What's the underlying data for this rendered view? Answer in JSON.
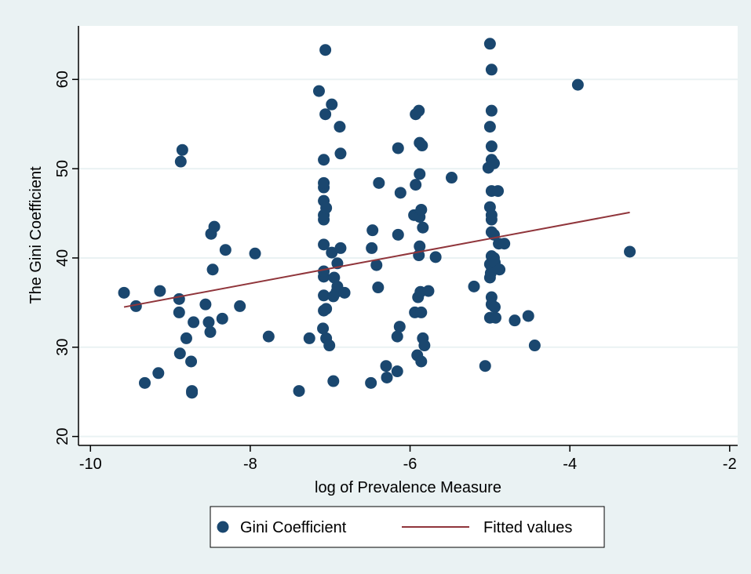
{
  "chart_data": {
    "type": "scatter",
    "xlabel": "log of Prevalence Measure",
    "ylabel": "The Gini Coefficient",
    "xlim": [
      -10.15,
      -1.9
    ],
    "ylim": [
      19,
      66
    ],
    "x_ticks": [
      -10,
      -8,
      -6,
      -4,
      -2
    ],
    "y_ticks": [
      20,
      30,
      40,
      50,
      60
    ],
    "x_tick_labels": [
      "-10",
      "-8",
      "-6",
      "-4",
      "-2"
    ],
    "y_tick_labels": [
      "20",
      "30",
      "40",
      "50",
      "60"
    ],
    "grid": true,
    "legend_position": "bottom",
    "legend": {
      "scatter_label": "Gini Coefficient",
      "line_label": "Fitted values"
    },
    "colors": {
      "marker": "#1a476f",
      "fit_line": "#90353b",
      "background": "#eaf2f3",
      "plot_area": "#ffffff",
      "grid": "#eaf2f3"
    },
    "fitted_line": {
      "x": [
        -9.58,
        -3.25
      ],
      "y": [
        34.5,
        45.1
      ]
    },
    "series": [
      {
        "name": "Gini Coefficient",
        "points": [
          [
            -9.58,
            36.1
          ],
          [
            -9.43,
            34.6
          ],
          [
            -9.32,
            26.0
          ],
          [
            -9.15,
            27.1
          ],
          [
            -9.13,
            36.3
          ],
          [
            -8.89,
            35.4
          ],
          [
            -8.89,
            33.9
          ],
          [
            -8.88,
            29.3
          ],
          [
            -8.87,
            50.8
          ],
          [
            -8.85,
            52.1
          ],
          [
            -8.8,
            31.0
          ],
          [
            -8.74,
            28.4
          ],
          [
            -8.73,
            25.1
          ],
          [
            -8.73,
            24.9
          ],
          [
            -8.71,
            32.8
          ],
          [
            -8.56,
            34.8
          ],
          [
            -8.52,
            32.8
          ],
          [
            -8.5,
            31.7
          ],
          [
            -8.49,
            42.7
          ],
          [
            -8.47,
            38.7
          ],
          [
            -8.45,
            43.5
          ],
          [
            -8.35,
            33.2
          ],
          [
            -8.31,
            40.9
          ],
          [
            -8.13,
            34.6
          ],
          [
            -7.94,
            40.5
          ],
          [
            -7.77,
            31.2
          ],
          [
            -7.39,
            25.1
          ],
          [
            -7.26,
            31.0
          ],
          [
            -7.14,
            58.7
          ],
          [
            -7.09,
            32.1
          ],
          [
            -7.08,
            34.1
          ],
          [
            -7.08,
            35.8
          ],
          [
            -7.08,
            37.9
          ],
          [
            -7.08,
            38.5
          ],
          [
            -7.08,
            41.5
          ],
          [
            -7.08,
            44.3
          ],
          [
            -7.08,
            44.8
          ],
          [
            -7.08,
            46.4
          ],
          [
            -7.08,
            47.9
          ],
          [
            -7.08,
            48.4
          ],
          [
            -7.08,
            51.0
          ],
          [
            -7.06,
            63.3
          ],
          [
            -7.06,
            56.1
          ],
          [
            -7.05,
            31.0
          ],
          [
            -7.05,
            34.3
          ],
          [
            -7.05,
            45.6
          ],
          [
            -7.01,
            30.2
          ],
          [
            -6.98,
            57.2
          ],
          [
            -6.98,
            40.6
          ],
          [
            -6.96,
            26.2
          ],
          [
            -6.96,
            35.7
          ],
          [
            -6.95,
            37.8
          ],
          [
            -6.92,
            36.2
          ],
          [
            -6.91,
            39.4
          ],
          [
            -6.91,
            36.8
          ],
          [
            -6.88,
            54.7
          ],
          [
            -6.87,
            51.7
          ],
          [
            -6.87,
            41.1
          ],
          [
            -6.82,
            36.1
          ],
          [
            -6.49,
            26.0
          ],
          [
            -6.48,
            41.1
          ],
          [
            -6.47,
            43.1
          ],
          [
            -6.42,
            39.2
          ],
          [
            -6.4,
            36.7
          ],
          [
            -6.39,
            48.4
          ],
          [
            -6.3,
            27.9
          ],
          [
            -6.29,
            26.6
          ],
          [
            -6.16,
            27.3
          ],
          [
            -6.16,
            31.2
          ],
          [
            -6.15,
            42.6
          ],
          [
            -6.15,
            52.3
          ],
          [
            -6.13,
            32.3
          ],
          [
            -6.12,
            47.3
          ],
          [
            -5.95,
            44.8
          ],
          [
            -5.94,
            33.9
          ],
          [
            -5.93,
            56.1
          ],
          [
            -5.93,
            48.2
          ],
          [
            -5.91,
            29.1
          ],
          [
            -5.9,
            35.6
          ],
          [
            -5.89,
            40.3
          ],
          [
            -5.89,
            56.5
          ],
          [
            -5.88,
            52.9
          ],
          [
            -5.88,
            49.4
          ],
          [
            -5.88,
            44.6
          ],
          [
            -5.88,
            41.3
          ],
          [
            -5.87,
            36.2
          ],
          [
            -5.86,
            28.4
          ],
          [
            -5.86,
            33.9
          ],
          [
            -5.86,
            45.4
          ],
          [
            -5.85,
            52.6
          ],
          [
            -5.84,
            43.4
          ],
          [
            -5.84,
            31.0
          ],
          [
            -5.82,
            30.2
          ],
          [
            -5.77,
            36.3
          ],
          [
            -5.68,
            40.1
          ],
          [
            -5.48,
            49.0
          ],
          [
            -5.2,
            36.8
          ],
          [
            -5.06,
            27.9
          ],
          [
            -5.02,
            50.1
          ],
          [
            -5.0,
            64.0
          ],
          [
            -5.0,
            54.7
          ],
          [
            -5.0,
            45.7
          ],
          [
            -5.0,
            39.3
          ],
          [
            -5.0,
            37.8
          ],
          [
            -5.0,
            33.3
          ],
          [
            -4.99,
            38.3
          ],
          [
            -4.98,
            61.1
          ],
          [
            -4.98,
            56.5
          ],
          [
            -4.98,
            52.5
          ],
          [
            -4.98,
            51.0
          ],
          [
            -4.98,
            47.5
          ],
          [
            -4.98,
            44.8
          ],
          [
            -4.98,
            44.3
          ],
          [
            -4.98,
            42.9
          ],
          [
            -4.98,
            40.2
          ],
          [
            -4.98,
            39.0
          ],
          [
            -4.98,
            35.6
          ],
          [
            -4.98,
            34.8
          ],
          [
            -4.95,
            50.6
          ],
          [
            -4.95,
            42.6
          ],
          [
            -4.95,
            40.0
          ],
          [
            -4.94,
            39.5
          ],
          [
            -4.94,
            34.5
          ],
          [
            -4.93,
            33.3
          ],
          [
            -4.9,
            47.5
          ],
          [
            -4.89,
            41.6
          ],
          [
            -4.88,
            38.7
          ],
          [
            -4.82,
            41.6
          ],
          [
            -4.69,
            33.0
          ],
          [
            -4.52,
            33.5
          ],
          [
            -4.44,
            30.2
          ],
          [
            -3.9,
            59.4
          ],
          [
            -3.25,
            40.7
          ]
        ]
      }
    ]
  }
}
